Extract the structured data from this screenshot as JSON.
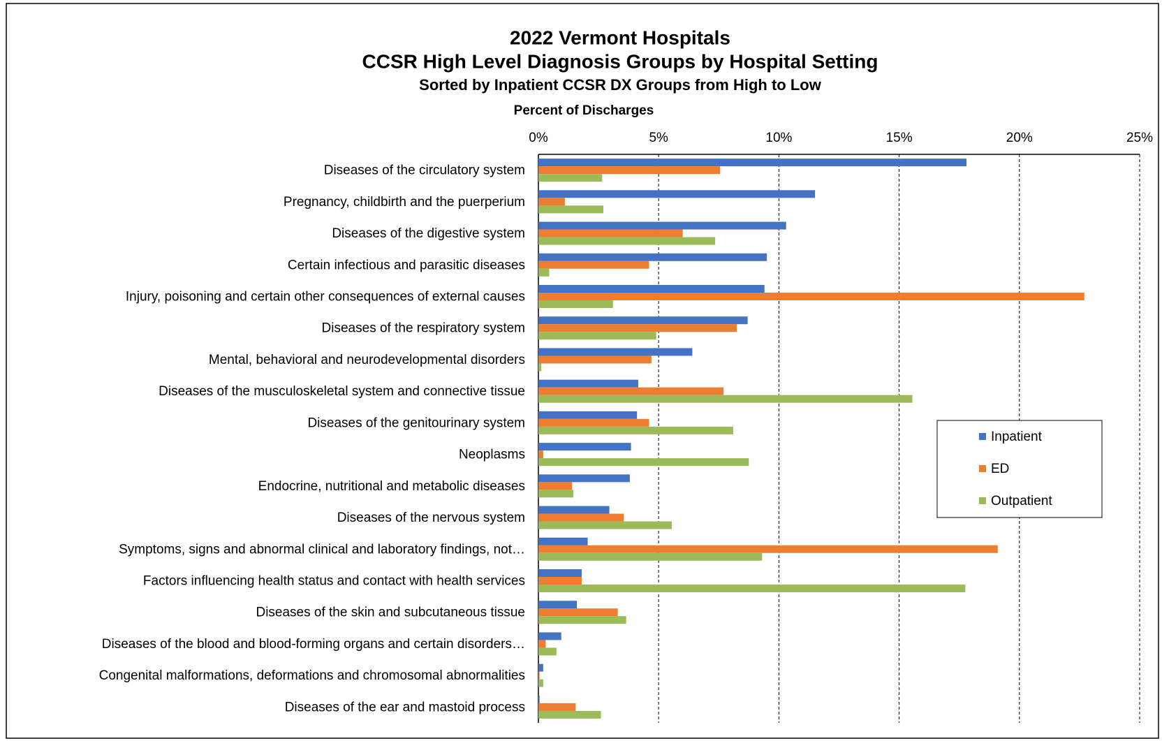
{
  "chart_data": {
    "type": "hbar",
    "title": "2022 Vermont Hospitals",
    "subtitle": "CCSR High Level Diagnosis Groups by Hospital Setting",
    "subtitle2": "Sorted by Inpatient CCSR DX Groups from High to Low",
    "x_label": "Percent of Discharges",
    "categories": [
      "Diseases of the circulatory system",
      "Pregnancy, childbirth and the puerperium",
      "Diseases of the digestive system",
      "Certain infectious and parasitic diseases",
      "Injury, poisoning and certain other consequences of external causes",
      "Diseases of the respiratory system",
      "Mental, behavioral and neurodevelopmental disorders",
      "Diseases of the musculoskeletal system and connective tissue",
      "Diseases of the genitourinary system",
      "Neoplasms",
      "Endocrine, nutritional and metabolic diseases",
      "Diseases of the nervous system",
      "Symptoms, signs and abnormal clinical and laboratory findings, not…",
      "Factors influencing health status and contact with health services",
      "Diseases of the skin and subcutaneous tissue",
      "Diseases of the blood and blood-forming organs and certain disorders…",
      "Congenital malformations, deformations and chromosomal abnormalities",
      "Diseases of the ear and mastoid process"
    ],
    "series": [
      {
        "name": "Inpatient",
        "color": "#4472c4",
        "values": [
          17.8,
          11.5,
          10.3,
          9.5,
          9.4,
          8.7,
          6.4,
          4.15,
          4.1,
          3.85,
          3.8,
          2.95,
          2.05,
          1.8,
          1.6,
          0.95,
          0.2,
          0.05
        ]
      },
      {
        "name": "ED",
        "color": "#ed7d31",
        "values": [
          7.55,
          1.1,
          6.0,
          4.6,
          22.7,
          8.25,
          4.7,
          7.7,
          4.6,
          0.2,
          1.4,
          3.55,
          19.1,
          1.8,
          3.3,
          0.3,
          0.05,
          1.55
        ]
      },
      {
        "name": "Outpatient",
        "color": "#9bbb59",
        "values": [
          2.65,
          2.7,
          7.35,
          0.45,
          3.1,
          4.9,
          0.12,
          15.55,
          8.1,
          8.75,
          1.45,
          5.55,
          9.3,
          17.75,
          3.65,
          0.75,
          0.2,
          2.6
        ]
      }
    ],
    "xlim": [
      0,
      25
    ],
    "xticks": [
      {
        "value": 0,
        "label": "0%"
      },
      {
        "value": 5,
        "label": "5%"
      },
      {
        "value": 10,
        "label": "10%"
      },
      {
        "value": 15,
        "label": "15%"
      },
      {
        "value": 20,
        "label": "20%"
      },
      {
        "value": 25,
        "label": "25%"
      }
    ],
    "grid": true,
    "legend": "right"
  }
}
